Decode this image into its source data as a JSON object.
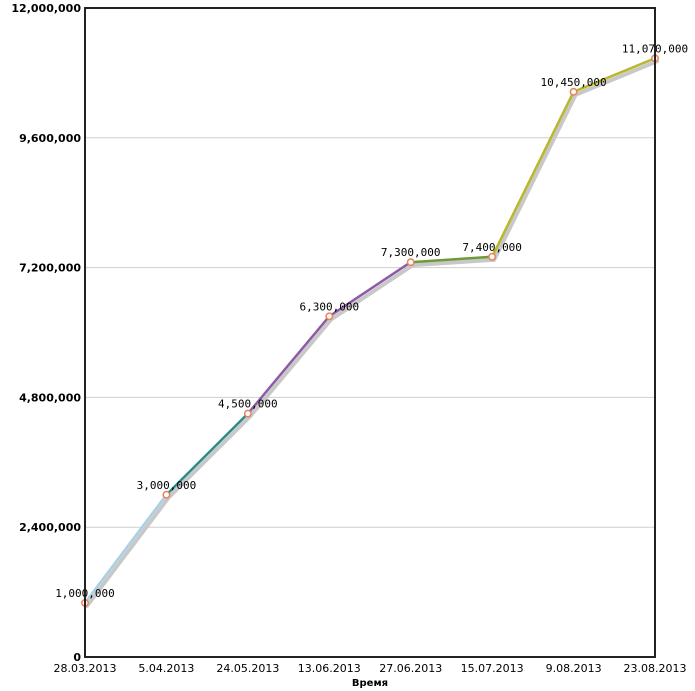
{
  "chart_data": {
    "type": "line",
    "title": "",
    "xlabel": "Время",
    "ylabel": "",
    "categories": [
      "28.03.2013",
      "5.04.2013",
      "24.05.2013",
      "13.06.2013",
      "27.06.2013",
      "15.07.2013",
      "9.08.2013",
      "23.08.2013"
    ],
    "values": [
      1000000,
      3000000,
      4500000,
      6300000,
      7300000,
      7400000,
      10450000,
      11070000
    ],
    "value_labels": [
      "1,000,000",
      "3,000,000",
      "4,500,000",
      "6,300,000",
      "7,300,000",
      "7,400,000",
      "10,450,000",
      "11,070,000"
    ],
    "ylim": [
      0,
      12000000
    ],
    "yticks": [
      0,
      2400000,
      4800000,
      7200000,
      9600000,
      12000000
    ],
    "ytick_labels": [
      "0",
      "2,400,000",
      "4,800,000",
      "7,200,000",
      "9,600,000",
      "12,000,000"
    ],
    "segment_colors": [
      "#a9cfe4",
      "#2a8a8a",
      "#8e5aa6",
      "#8e5aa6",
      "#6e9a3a",
      "#b8b82a",
      "#b8b82a"
    ],
    "marker_color": "#e8825a",
    "shadow_color": "#c8c8c8",
    "grid": true,
    "legend": "none"
  }
}
